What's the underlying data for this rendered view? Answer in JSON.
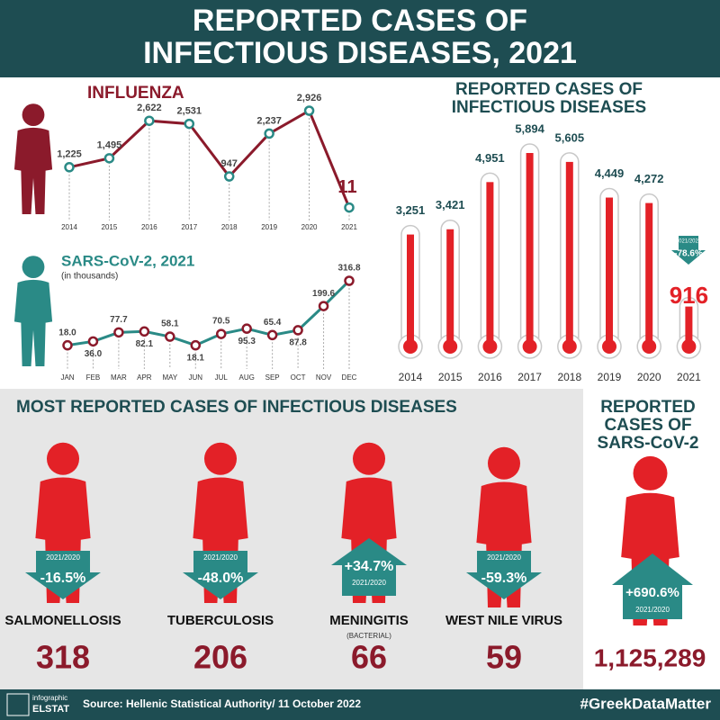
{
  "header": {
    "title": "REPORTED CASES OF INFECTIOUS DISEASES, 2021"
  },
  "chart_data": [
    {
      "type": "line",
      "title": "INFLUENZA",
      "categories": [
        "2014",
        "2015",
        "2016",
        "2017",
        "2018",
        "2019",
        "2020",
        "2021"
      ],
      "values": [
        1225,
        1495,
        2622,
        2531,
        947,
        2237,
        2926,
        11
      ],
      "value_labels": [
        "1,225",
        "1,495",
        "2,622",
        "2,531",
        "947",
        "2,237",
        "2,926",
        "11"
      ],
      "color": "#8b1a2b",
      "marker_color": "#2a8a86"
    },
    {
      "type": "line",
      "title": "SARS-CoV-2, 2021",
      "subtitle": "(in thousands)",
      "categories": [
        "JAN",
        "FEB",
        "MAR",
        "APR",
        "MAY",
        "JUN",
        "JUL",
        "AUG",
        "SEP",
        "OCT",
        "NOV",
        "DEC"
      ],
      "values": [
        18.0,
        36.0,
        77.7,
        82.1,
        58.1,
        18.1,
        70.5,
        95.3,
        65.4,
        87.8,
        199.6,
        316.8
      ],
      "value_labels": [
        "18.0",
        "36.0",
        "77.7",
        "82.1",
        "58.1",
        "18.1",
        "70.5",
        "95.3",
        "65.4",
        "87.8",
        "199.6",
        "316.8"
      ],
      "color": "#2a8a86",
      "marker_color": "#8b1a2b"
    },
    {
      "type": "thermometer",
      "title": "REPORTED CASES OF INFECTIOUS DISEASES",
      "categories": [
        "2014",
        "2015",
        "2016",
        "2017",
        "2018",
        "2019",
        "2020",
        "2021"
      ],
      "values": [
        3251,
        3421,
        4951,
        5894,
        5605,
        4449,
        4272,
        916
      ],
      "value_labels": [
        "3,251",
        "3,421",
        "4,951",
        "5,894",
        "5,605",
        "4,449",
        "4,272",
        "916"
      ],
      "color": "#e32127",
      "annotation": {
        "period": "2021/2020",
        "change": "-78.6%"
      }
    }
  ],
  "most_reported": {
    "title": "MOST REPORTED CASES OF INFECTIOUS DISEASES",
    "items": [
      {
        "name": "SALMONELLOSIS",
        "value": "318",
        "change": "-16.5%",
        "period": "2021/2020"
      },
      {
        "name": "TUBERCULOSIS",
        "value": "206",
        "change": "-48.0%",
        "period": "2021/2020"
      },
      {
        "name": "MENINGITIS",
        "note": "(BACTERIAL)",
        "value": "66",
        "change": "+34.7%",
        "period": "2021/2020"
      },
      {
        "name": "WEST NILE VIRUS",
        "value": "59",
        "change": "-59.3%",
        "period": "2021/2020"
      }
    ]
  },
  "sars_total": {
    "title": "REPORTED CASES OF SARS-CoV-2",
    "value": "1,125,289",
    "change": "+690.6%",
    "period": "2021/2020"
  },
  "footer": {
    "logo_top": "infographic",
    "logo": "ELSTAT",
    "source": "Source: Hellenic Statistical Authority/ 11 October 2022",
    "hashtag": "#GreekDataMatter"
  }
}
